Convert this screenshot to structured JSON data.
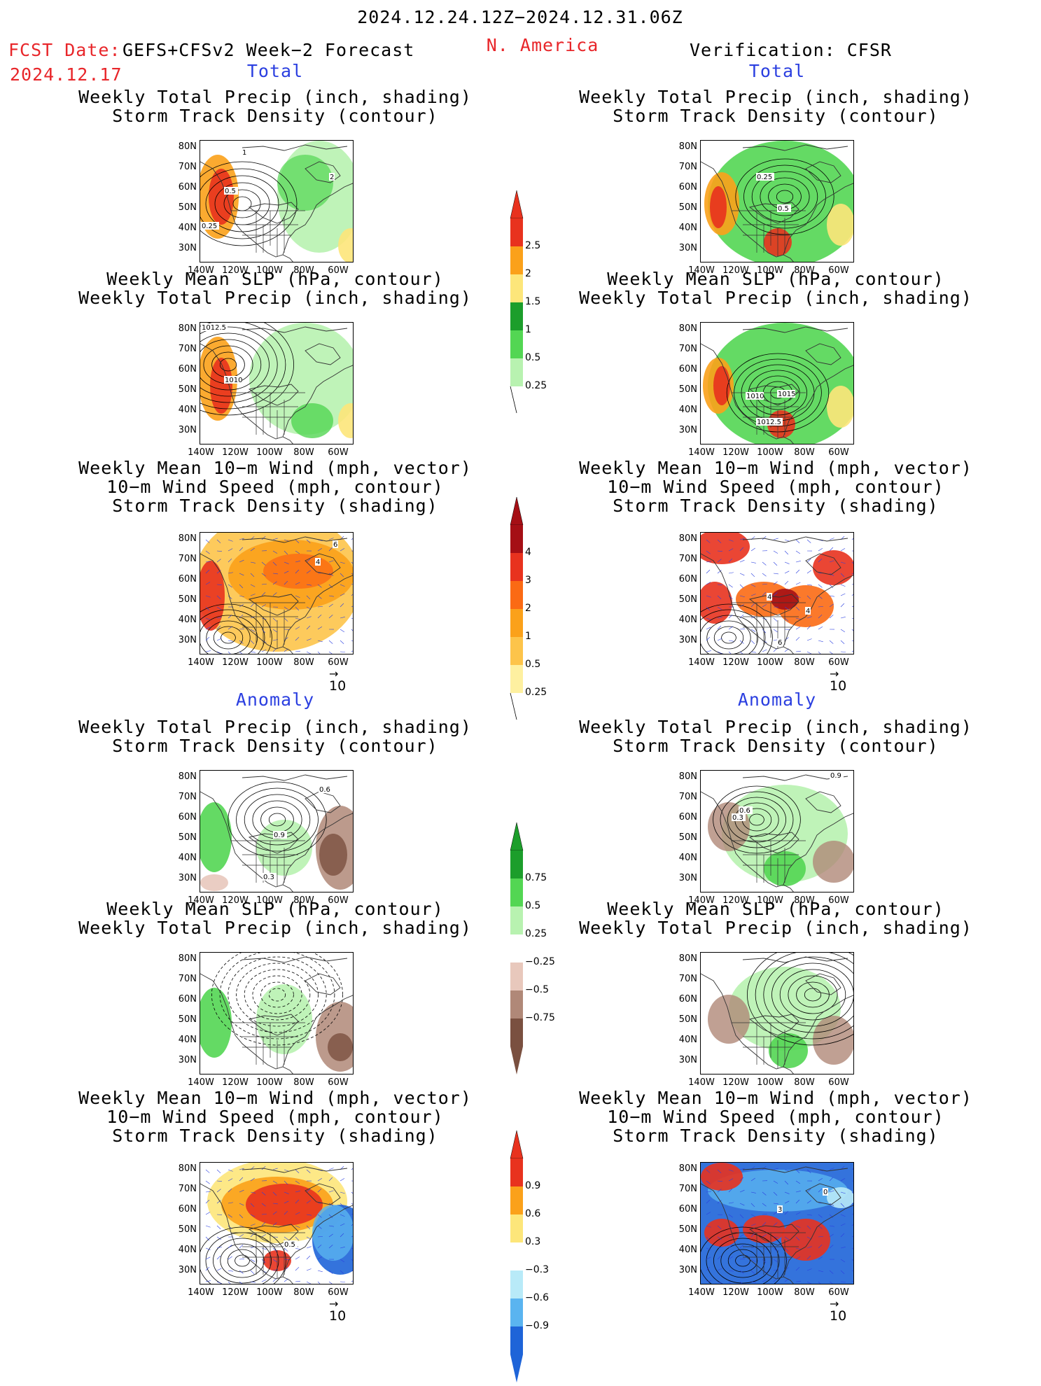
{
  "header": {
    "period": "2024.12.24.12Z−2024.12.31.06Z",
    "fcst_date_label": "FCST Date:",
    "fcst_date": "2024.12.17",
    "forecast_name": "GEFS+CFSv2 Week−2 Forecast",
    "region": "N. America",
    "verification": "Verification: CFSR"
  },
  "section_labels": {
    "total": "Total",
    "anomaly": "Anomaly"
  },
  "axes": {
    "lat_labels": [
      "80N",
      "70N",
      "60N",
      "50N",
      "40N",
      "30N"
    ],
    "lon_labels": [
      "140W",
      "120W",
      "100W",
      "80W",
      "60W"
    ],
    "vector_ref": "10"
  },
  "panel_titles": {
    "precip_storm": [
      "Weekly Total Precip (inch, shading)",
      "Storm Track Density (contour)"
    ],
    "slp_precip": [
      "Weekly Mean SLP (hPa, contour)",
      "Weekly Total Precip (inch, shading)"
    ],
    "wind_storm": [
      "Weekly Mean 10−m Wind (mph, vector)",
      "10−m Wind Speed (mph, contour)",
      "Storm Track Density (shading)"
    ]
  },
  "contour_labels": {
    "fc_total_precip": [
      "0.5",
      "0.25",
      "1",
      "2"
    ],
    "obs_total_precip": [
      "0.25",
      "0.5"
    ],
    "fc_total_slp": [
      "1012.5",
      "1010"
    ],
    "obs_total_slp": [
      "1010",
      "1015",
      "1012.5"
    ],
    "fc_total_wind": [
      "4",
      "6"
    ],
    "obs_total_wind": [
      "4",
      "4",
      "6"
    ],
    "fc_anom_precip": [
      "0.6",
      "0.9",
      "0.3"
    ],
    "obs_anom_precip": [
      "0.9",
      "0.6",
      "0.3"
    ],
    "fc_anom_wind": [
      "0.5"
    ],
    "obs_anom_wind": [
      "3",
      "0"
    ]
  },
  "colorbars": {
    "total_precip": {
      "labels": [
        "2.5",
        "2",
        "1.5",
        "1",
        "0.5",
        "0.25"
      ],
      "colors": [
        "#e8321e",
        "#fba11a",
        "#fde67a",
        "#1c9e2b",
        "#53d653",
        "#b8f2b0"
      ]
    },
    "total_storm": {
      "labels": [
        "4",
        "3",
        "2",
        "1",
        "0.5",
        "0.25"
      ],
      "colors": [
        "#a50f15",
        "#e8321e",
        "#fb6a14",
        "#fba11a",
        "#fdc44a",
        "#fef0a0"
      ]
    },
    "anom_precip": {
      "labels": [
        "0.75",
        "0.5",
        "0.25",
        "−0.25",
        "−0.5",
        "−0.75"
      ],
      "colors": [
        "#1c9e2b",
        "#53d653",
        "#b8f2b0",
        "#ffffff",
        "#e8c8bc",
        "#b08878",
        "#7a5040"
      ]
    },
    "anom_storm": {
      "labels": [
        "0.9",
        "0.6",
        "0.3",
        "−0.3",
        "−0.6",
        "−0.9"
      ],
      "colors": [
        "#e8321e",
        "#fba11a",
        "#fde67a",
        "#ffffff",
        "#b8eaf8",
        "#5ab4f0",
        "#1e64d8"
      ]
    }
  }
}
